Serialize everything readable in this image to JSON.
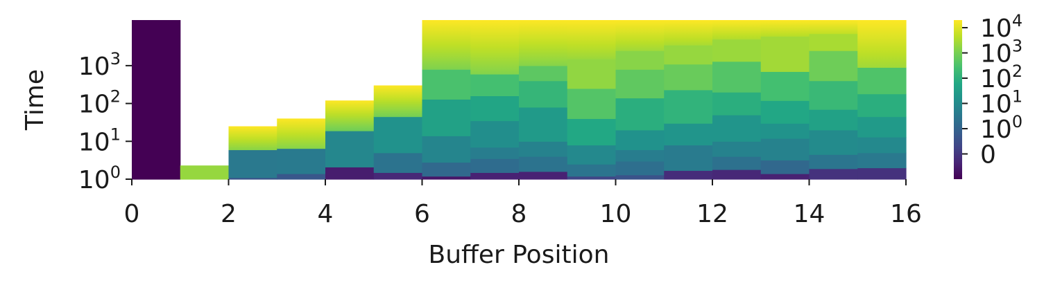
{
  "chart_data": {
    "type": "heatmap",
    "xlabel": "Buffer Position",
    "ylabel": "Time",
    "x_ticks": [
      0,
      2,
      4,
      6,
      8,
      10,
      12,
      14,
      16
    ],
    "xlim": [
      0,
      16
    ],
    "y_scale": "symlog",
    "y_ticks": [
      {
        "base": "10",
        "exp": "0",
        "value": 1
      },
      {
        "base": "10",
        "exp": "1",
        "value": 10
      },
      {
        "base": "10",
        "exp": "2",
        "value": 100
      },
      {
        "base": "10",
        "exp": "3",
        "value": 1000
      }
    ],
    "ylim": [
      1,
      16000
    ],
    "colormap": "viridis",
    "colorbar": {
      "scale": "symlog",
      "range": [
        -1,
        20000
      ],
      "ticks": [
        {
          "base": "0",
          "exp": "",
          "value": 0
        },
        {
          "base": "10",
          "exp": "0",
          "value": 1
        },
        {
          "base": "10",
          "exp": "1",
          "value": 10
        },
        {
          "base": "10",
          "exp": "2",
          "value": 100
        },
        {
          "base": "10",
          "exp": "3",
          "value": 1000
        },
        {
          "base": "10",
          "exp": "4",
          "value": 10000
        }
      ]
    },
    "legend_placement": "right",
    "grid": false,
    "column_band_edges": [
      [
        1,
        16000
      ],
      [
        1,
        2.3,
        16000
      ],
      [
        1,
        1.1,
        6,
        25,
        16000
      ],
      [
        1,
        1.4,
        6.5,
        40,
        16000
      ],
      [
        1,
        2.1,
        19,
        120,
        16000
      ],
      [
        1,
        1.5,
        5,
        45,
        300,
        16000
      ],
      [
        1,
        1.2,
        2.8,
        14,
        130,
        800,
        16000
      ],
      [
        1,
        1.5,
        3.5,
        7,
        35,
        160,
        600,
        16000
      ],
      [
        1,
        1.6,
        4,
        10,
        80,
        400,
        1000,
        16000
      ],
      [
        1,
        1.2,
        2.5,
        8,
        40,
        250,
        1500,
        16000
      ],
      [
        1,
        1.3,
        3,
        6,
        20,
        140,
        800,
        2500,
        16000
      ],
      [
        1,
        1.7,
        8,
        30,
        230,
        1100,
        3500,
        16000
      ],
      [
        1,
        1.8,
        4,
        10,
        50,
        200,
        1300,
        5000,
        16000
      ],
      [
        1,
        1.4,
        3.2,
        12,
        30,
        120,
        700,
        6000,
        16000
      ],
      [
        1,
        1.9,
        4.5,
        20,
        70,
        400,
        2500,
        7000,
        16000
      ],
      [
        1,
        2.0,
        5,
        13,
        45,
        180,
        900,
        16000
      ]
    ],
    "column_band_values": [
      [
        -1
      ],
      [
        2000
      ],
      [
        0.6,
        3.5,
        1500
      ],
      [
        0.7,
        3.8,
        1400
      ],
      [
        -0.5,
        8,
        800
      ],
      [
        -0.3,
        2.5,
        15,
        900
      ],
      [
        -0.6,
        1.4,
        7,
        40,
        300,
        1200
      ],
      [
        -0.4,
        1.7,
        4.5,
        12,
        50,
        260,
        1300
      ],
      [
        -0.4,
        2.5,
        6,
        25,
        140,
        500,
        1400
      ],
      [
        0.3,
        2.6,
        9,
        60,
        400,
        1800,
        2200
      ],
      [
        0.6,
        2,
        4.5,
        15,
        90,
        550,
        1500,
        2500
      ],
      [
        -0.2,
        4,
        18,
        120,
        700,
        2000,
        3000
      ],
      [
        -0.3,
        2.2,
        6,
        18,
        90,
        400,
        2200,
        3500
      ],
      [
        -0.4,
        1.3,
        6,
        16,
        55,
        250,
        2600,
        4000
      ],
      [
        -0.1,
        2.8,
        10,
        40,
        170,
        800,
        3000,
        5000
      ],
      [
        -0.1,
        3.5,
        9,
        25,
        90,
        350,
        2500
      ]
    ]
  }
}
